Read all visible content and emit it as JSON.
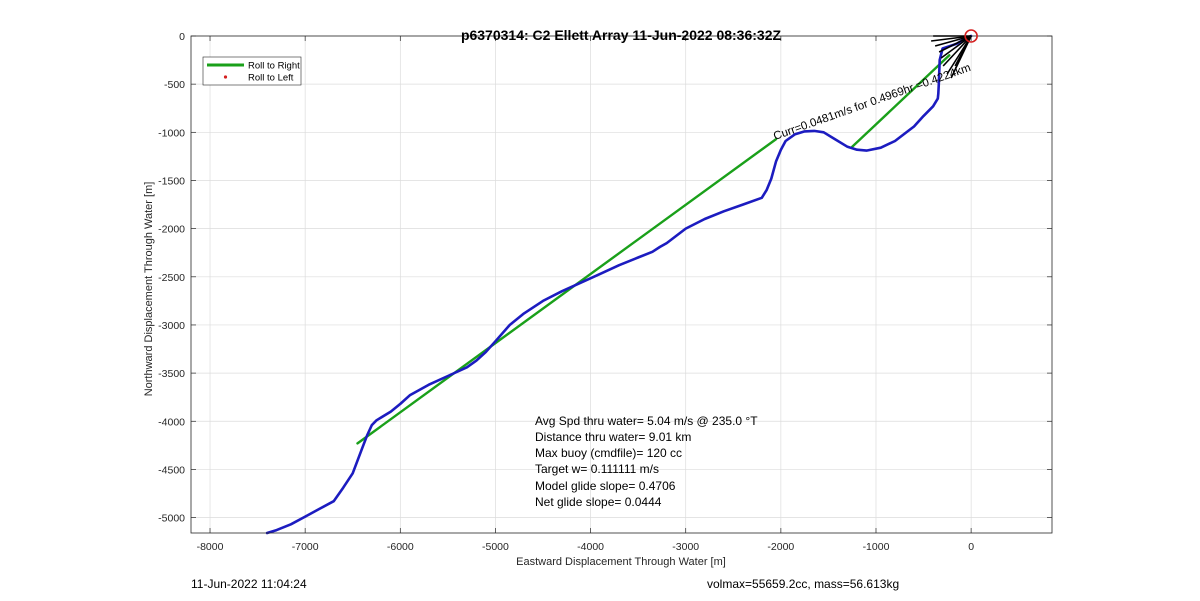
{
  "chart_data": {
    "type": "line",
    "title": "p6370314: C2 Ellett Array 11-Jun-2022 08:36:32Z",
    "xlabel": "Eastward Displacement Through Water [m]",
    "ylabel": "Northward Displacement Through Water [m]",
    "xlim": [
      -8200,
      850
    ],
    "ylim": [
      -5160,
      0
    ],
    "xticks": [
      -8000,
      -7000,
      -6000,
      -5000,
      -4000,
      -3000,
      -2000,
      -1000,
      0
    ],
    "yticks": [
      0,
      -500,
      -1000,
      -1500,
      -2000,
      -2500,
      -3000,
      -3500,
      -4000,
      -4500,
      -5000
    ],
    "grid": true,
    "legend": {
      "placement": "top-left",
      "entries": [
        {
          "label": "Roll to Right",
          "color": "#1aa01a",
          "style": "line"
        },
        {
          "label": "Roll to Left",
          "color": "#d42020",
          "style": "dot"
        }
      ]
    },
    "series": [
      {
        "color": "#1c1cc0",
        "style": "line",
        "x": [
          0,
          -50,
          -150,
          -300,
          -330,
          -340,
          -345,
          -350,
          -400,
          -500,
          -600,
          -800,
          -950,
          -1100,
          -1200,
          -1300,
          -1450,
          -1550,
          -1650,
          -1750,
          -1850,
          -1950,
          -2000,
          -2050,
          -2100,
          -2150,
          -2200,
          -2400,
          -2600,
          -2800,
          -3000,
          -3200,
          -3270,
          -3350,
          -3500,
          -3700,
          -3900,
          -4100,
          -4300,
          -4500,
          -4700,
          -4850,
          -5000,
          -5100,
          -5200,
          -5300,
          -5500,
          -5700,
          -5900,
          -6000,
          -6100,
          -6250,
          -6300,
          -6350,
          -6400,
          -6500,
          -6600,
          -6700,
          -6850,
          -7000,
          -7150,
          -7300,
          -7400
        ],
        "y": [
          0,
          -20,
          -80,
          -130,
          -250,
          -500,
          -600,
          -650,
          -730,
          -830,
          -940,
          -1090,
          -1160,
          -1190,
          -1180,
          -1150,
          -1060,
          -1000,
          -985,
          -990,
          -1020,
          -1090,
          -1180,
          -1300,
          -1480,
          -1600,
          -1680,
          -1750,
          -1820,
          -1900,
          -2000,
          -2150,
          -2190,
          -2240,
          -2300,
          -2380,
          -2470,
          -2560,
          -2650,
          -2750,
          -2880,
          -3000,
          -3170,
          -3280,
          -3370,
          -3440,
          -3530,
          -3620,
          -3730,
          -3820,
          -3900,
          -3990,
          -4040,
          -4150,
          -4280,
          -4540,
          -4690,
          -4830,
          -4910,
          -4990,
          -5070,
          -5130,
          -5160
        ]
      },
      {
        "color": "#1aa01a",
        "style": "line",
        "x": [
          -6450,
          -2050
        ],
        "y": [
          -4230,
          -1070
        ]
      },
      {
        "color": "#1aa01a",
        "style": "line",
        "x": [
          -1250,
          -230
        ],
        "y": [
          -1150,
          -200
        ]
      }
    ],
    "target_marker": {
      "x": 0,
      "y": 0,
      "color": "#d42020"
    },
    "current_annotation": "Curr=0.0481m/s for 0.4969hr =0.4224km",
    "annotations": [
      "Avg Spd thru water=  5.04 m/s @ 235.0 °T",
      "Distance thru water=  9.01 km",
      "Max buoy (cmdfile)= 120 cc",
      "Target w= 0.111111 m/s",
      "Model glide slope= 0.4706",
      "Net glide slope= 0.0444"
    ]
  },
  "footer": {
    "left": "11-Jun-2022 11:04:24",
    "right": "volmax=55659.2cc, mass=56.613kg"
  }
}
